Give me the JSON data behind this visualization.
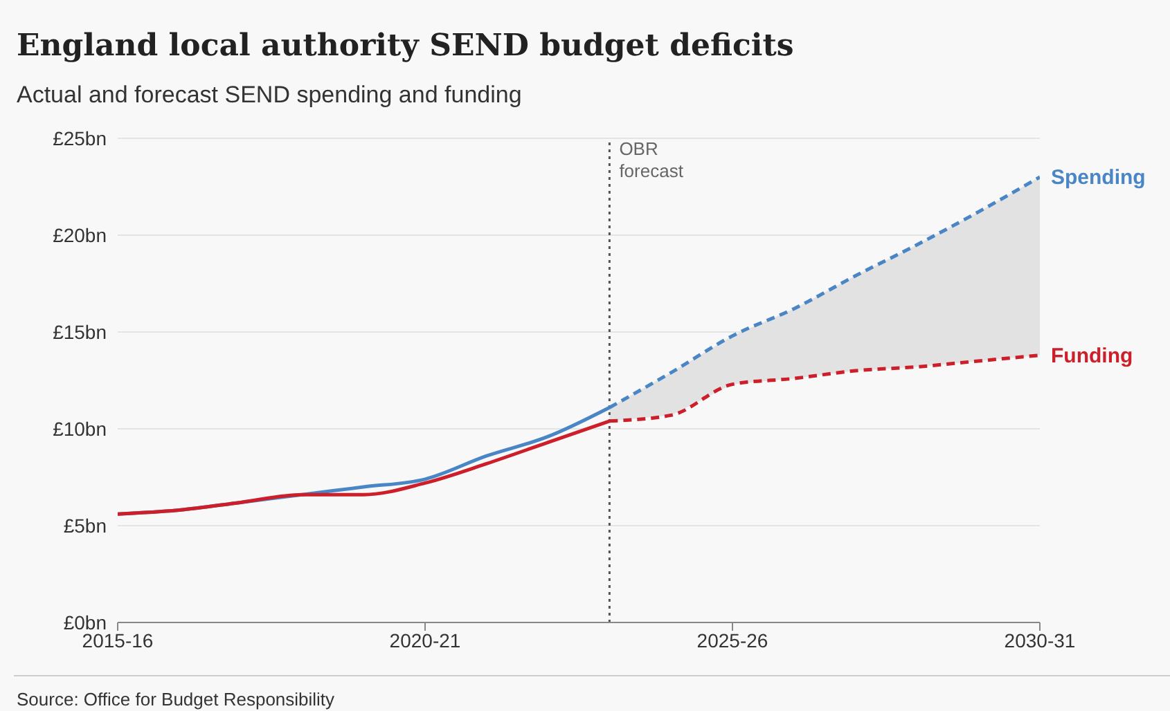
{
  "chart_data": {
    "type": "line",
    "title": "England local authority SEND budget deficits",
    "subtitle": "Actual and forecast SEND spending and funding",
    "categories": [
      "2015-16",
      null,
      null,
      null,
      null,
      "2020-21",
      null,
      null,
      null,
      null,
      "2025-26",
      null,
      null,
      null,
      null,
      "2030-31"
    ],
    "ylim": [
      0,
      25
    ],
    "yticks": [
      {
        "value": 0,
        "label": "£0bn"
      },
      {
        "value": 5,
        "label": "£5bn"
      },
      {
        "value": 10,
        "label": "£10bn"
      },
      {
        "value": 15,
        "label": "£15bn"
      },
      {
        "value": 20,
        "label": "£20bn"
      },
      {
        "value": 25,
        "label": "£25bn"
      }
    ],
    "series": [
      {
        "color": "#4a86c5",
        "line_style": "solid",
        "values": [
          5.6,
          5.8,
          6.2,
          6.6,
          7.0,
          7.4,
          8.6,
          9.6,
          11.1,
          null,
          null,
          null,
          null,
          null,
          null,
          null
        ]
      },
      {
        "color": "#cc1f2a",
        "line_style": "solid",
        "values": [
          5.6,
          5.8,
          6.2,
          6.6,
          6.6,
          7.2,
          8.2,
          9.3,
          10.4,
          null,
          null,
          null,
          null,
          null,
          null,
          null
        ]
      },
      {
        "name": "Spending",
        "color": "#4a86c5",
        "line_style": "dashed",
        "values": [
          null,
          null,
          null,
          null,
          null,
          null,
          null,
          null,
          11.1,
          12.9,
          14.8,
          16.2,
          17.9,
          19.5,
          21.2,
          23.0
        ],
        "lower": [
          null,
          null,
          null,
          null,
          null,
          null,
          null,
          null,
          10.4,
          10.7,
          12.3,
          12.6,
          13.0,
          13.2,
          13.5,
          13.8
        ],
        "upper": [
          null,
          null,
          null,
          null,
          null,
          null,
          null,
          null,
          11.1,
          12.9,
          14.8,
          16.2,
          17.9,
          19.5,
          21.2,
          23.0
        ]
      },
      {
        "name": "Funding",
        "color": "#cc1f2a",
        "line_style": "dashed",
        "values": [
          null,
          null,
          null,
          null,
          null,
          null,
          null,
          null,
          10.4,
          10.7,
          12.3,
          12.6,
          13.0,
          13.2,
          13.5,
          13.8
        ]
      }
    ],
    "ref_lines": [
      {
        "axis": "x",
        "label": "OBR forecast",
        "color": "#555555",
        "line_style": "dotted"
      }
    ],
    "grid": "y",
    "marker": "none",
    "annotations": [
      "Source: Office for Budget Responsibility"
    ]
  }
}
